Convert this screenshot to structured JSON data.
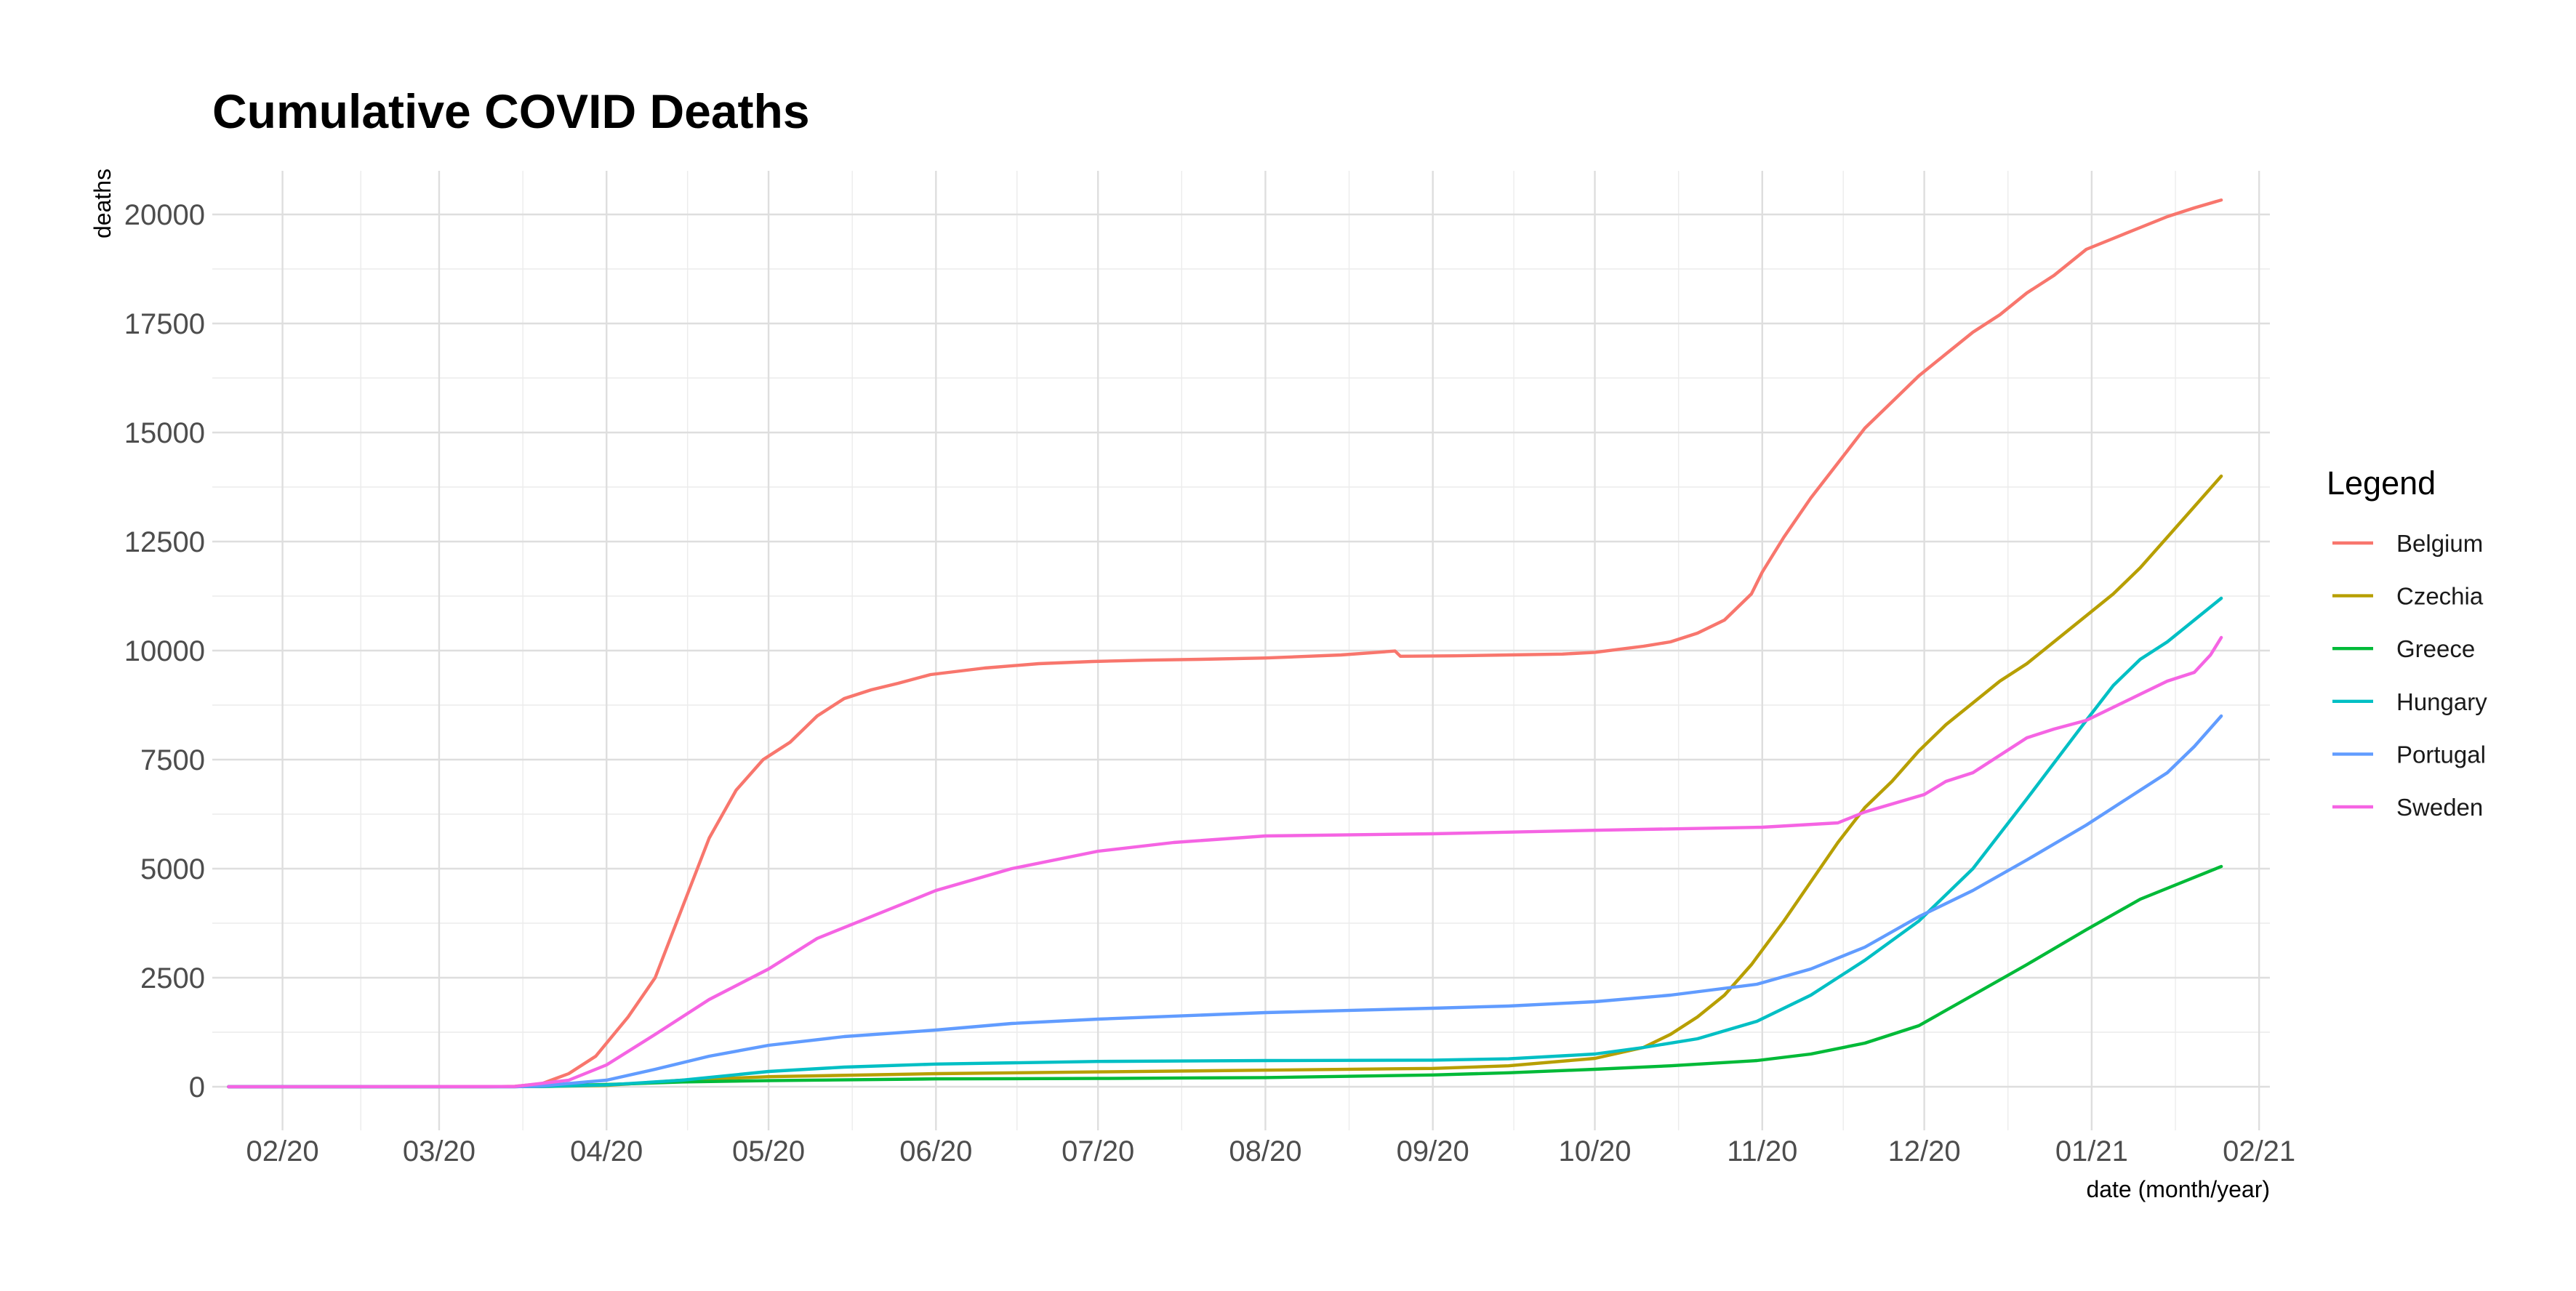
{
  "chart_data": {
    "type": "line",
    "title": "Cumulative COVID Deaths",
    "xlabel": "date (month/year)",
    "ylabel": "deaths",
    "x_ticks": [
      "02/20",
      "03/20",
      "04/20",
      "05/20",
      "06/20",
      "07/20",
      "08/20",
      "09/20",
      "10/20",
      "11/20",
      "12/20",
      "01/21",
      "02/21"
    ],
    "y_ticks": [
      0,
      2500,
      5000,
      7500,
      10000,
      12500,
      15000,
      17500,
      20000
    ],
    "xlim": [
      "2020-01-22",
      "2021-02-01"
    ],
    "ylim": [
      0,
      20300
    ],
    "grid": true,
    "legend_title": "Legend",
    "legend_position": "right",
    "series": [
      {
        "name": "Belgium",
        "color": "#F8766D",
        "x": [
          "2020-01-22",
          "2020-03-10",
          "2020-03-15",
          "2020-03-20",
          "2020-03-25",
          "2020-03-30",
          "2020-04-05",
          "2020-04-10",
          "2020-04-15",
          "2020-04-20",
          "2020-04-25",
          "2020-04-30",
          "2020-05-05",
          "2020-05-10",
          "2020-05-15",
          "2020-05-20",
          "2020-05-25",
          "2020-05-31",
          "2020-06-10",
          "2020-06-20",
          "2020-06-30",
          "2020-07-10",
          "2020-07-20",
          "2020-08-01",
          "2020-08-15",
          "2020-08-25",
          "2020-08-26",
          "2020-09-05",
          "2020-09-15",
          "2020-09-25",
          "2020-10-01",
          "2020-10-10",
          "2020-10-15",
          "2020-10-20",
          "2020-10-25",
          "2020-10-30",
          "2020-11-01",
          "2020-11-05",
          "2020-11-10",
          "2020-11-15",
          "2020-11-20",
          "2020-11-25",
          "2020-11-30",
          "2020-12-05",
          "2020-12-10",
          "2020-12-15",
          "2020-12-20",
          "2020-12-25",
          "2020-12-31",
          "2021-01-05",
          "2021-01-10",
          "2021-01-15",
          "2021-01-20",
          "2021-01-25"
        ],
        "values": [
          0,
          0,
          10,
          70,
          300,
          700,
          1600,
          2500,
          4100,
          5700,
          6800,
          7500,
          7900,
          8500,
          8900,
          9100,
          9250,
          9450,
          9600,
          9700,
          9750,
          9780,
          9800,
          9830,
          9900,
          9990,
          9870,
          9880,
          9900,
          9920,
          9960,
          10100,
          10200,
          10400,
          10700,
          11300,
          11800,
          12600,
          13500,
          14300,
          15100,
          15700,
          16300,
          16800,
          17300,
          17700,
          18200,
          18600,
          19200,
          19450,
          19700,
          19950,
          20150,
          20330
        ]
      },
      {
        "name": "Czechia",
        "color": "#B79F00",
        "x": [
          "2020-01-22",
          "2020-03-20",
          "2020-04-01",
          "2020-04-15",
          "2020-05-01",
          "2020-06-01",
          "2020-07-01",
          "2020-08-01",
          "2020-09-01",
          "2020-09-15",
          "2020-10-01",
          "2020-10-10",
          "2020-10-15",
          "2020-10-20",
          "2020-10-25",
          "2020-10-30",
          "2020-11-05",
          "2020-11-10",
          "2020-11-15",
          "2020-11-20",
          "2020-11-25",
          "2020-11-30",
          "2020-12-05",
          "2020-12-10",
          "2020-12-15",
          "2020-12-20",
          "2020-12-25",
          "2020-12-31",
          "2021-01-05",
          "2021-01-10",
          "2021-01-15",
          "2021-01-20",
          "2021-01-25"
        ],
        "values": [
          0,
          5,
          30,
          150,
          230,
          300,
          340,
          380,
          420,
          480,
          650,
          900,
          1200,
          1600,
          2100,
          2800,
          3800,
          4700,
          5600,
          6400,
          7000,
          7700,
          8300,
          8800,
          9300,
          9700,
          10200,
          10800,
          11300,
          11900,
          12600,
          13300,
          14000
        ]
      },
      {
        "name": "Greece",
        "color": "#00BA38",
        "x": [
          "2020-01-22",
          "2020-03-15",
          "2020-04-01",
          "2020-04-15",
          "2020-05-01",
          "2020-06-01",
          "2020-07-01",
          "2020-08-01",
          "2020-09-01",
          "2020-09-15",
          "2020-10-01",
          "2020-10-15",
          "2020-10-31",
          "2020-11-10",
          "2020-11-20",
          "2020-11-30",
          "2020-12-10",
          "2020-12-20",
          "2020-12-31",
          "2021-01-10",
          "2021-01-20",
          "2021-01-25"
        ],
        "values": [
          0,
          2,
          50,
          110,
          140,
          180,
          190,
          210,
          270,
          320,
          400,
          480,
          600,
          750,
          1000,
          1400,
          2100,
          2800,
          3600,
          4300,
          4800,
          5050
        ]
      },
      {
        "name": "Hungary",
        "color": "#00BFC4",
        "x": [
          "2020-01-22",
          "2020-03-20",
          "2020-04-01",
          "2020-04-15",
          "2020-05-01",
          "2020-05-15",
          "2020-06-01",
          "2020-07-01",
          "2020-08-01",
          "2020-09-01",
          "2020-09-15",
          "2020-10-01",
          "2020-10-10",
          "2020-10-20",
          "2020-10-31",
          "2020-11-10",
          "2020-11-20",
          "2020-11-30",
          "2020-12-10",
          "2020-12-20",
          "2020-12-31",
          "2021-01-05",
          "2021-01-10",
          "2021-01-15",
          "2021-01-20",
          "2021-01-25"
        ],
        "values": [
          0,
          5,
          40,
          150,
          350,
          450,
          520,
          580,
          600,
          610,
          640,
          750,
          900,
          1100,
          1500,
          2100,
          2900,
          3800,
          5000,
          6600,
          8400,
          9200,
          9800,
          10200,
          10700,
          11200
        ]
      },
      {
        "name": "Portugal",
        "color": "#619CFF",
        "x": [
          "2020-01-22",
          "2020-03-15",
          "2020-03-20",
          "2020-04-01",
          "2020-04-10",
          "2020-04-20",
          "2020-05-01",
          "2020-05-15",
          "2020-06-01",
          "2020-06-15",
          "2020-07-01",
          "2020-08-01",
          "2020-09-01",
          "2020-09-15",
          "2020-10-01",
          "2020-10-15",
          "2020-10-31",
          "2020-11-10",
          "2020-11-20",
          "2020-11-30",
          "2020-12-10",
          "2020-12-20",
          "2020-12-31",
          "2021-01-05",
          "2021-01-10",
          "2021-01-15",
          "2021-01-20",
          "2021-01-25"
        ],
        "values": [
          0,
          0,
          20,
          150,
          400,
          700,
          950,
          1150,
          1300,
          1450,
          1550,
          1700,
          1800,
          1850,
          1950,
          2100,
          2350,
          2700,
          3200,
          3900,
          4500,
          5200,
          6000,
          6400,
          6800,
          7200,
          7800,
          8500
        ]
      },
      {
        "name": "Sweden",
        "color": "#F564E3",
        "x": [
          "2020-01-22",
          "2020-03-15",
          "2020-03-25",
          "2020-04-01",
          "2020-04-10",
          "2020-04-20",
          "2020-05-01",
          "2020-05-10",
          "2020-05-20",
          "2020-06-01",
          "2020-06-15",
          "2020-07-01",
          "2020-07-15",
          "2020-08-01",
          "2020-09-01",
          "2020-10-01",
          "2020-11-01",
          "2020-11-15",
          "2020-11-20",
          "2020-12-01",
          "2020-12-05",
          "2020-12-10",
          "2020-12-15",
          "2020-12-20",
          "2020-12-25",
          "2020-12-31",
          "2021-01-05",
          "2021-01-10",
          "2021-01-15",
          "2021-01-20",
          "2021-01-23",
          "2021-01-25"
        ],
        "values": [
          0,
          5,
          150,
          500,
          1200,
          2000,
          2700,
          3400,
          3900,
          4500,
          5000,
          5400,
          5600,
          5750,
          5800,
          5880,
          5950,
          6050,
          6300,
          6700,
          7000,
          7200,
          7600,
          8000,
          8200,
          8400,
          8700,
          9000,
          9300,
          9500,
          9900,
          10300
        ]
      }
    ]
  }
}
